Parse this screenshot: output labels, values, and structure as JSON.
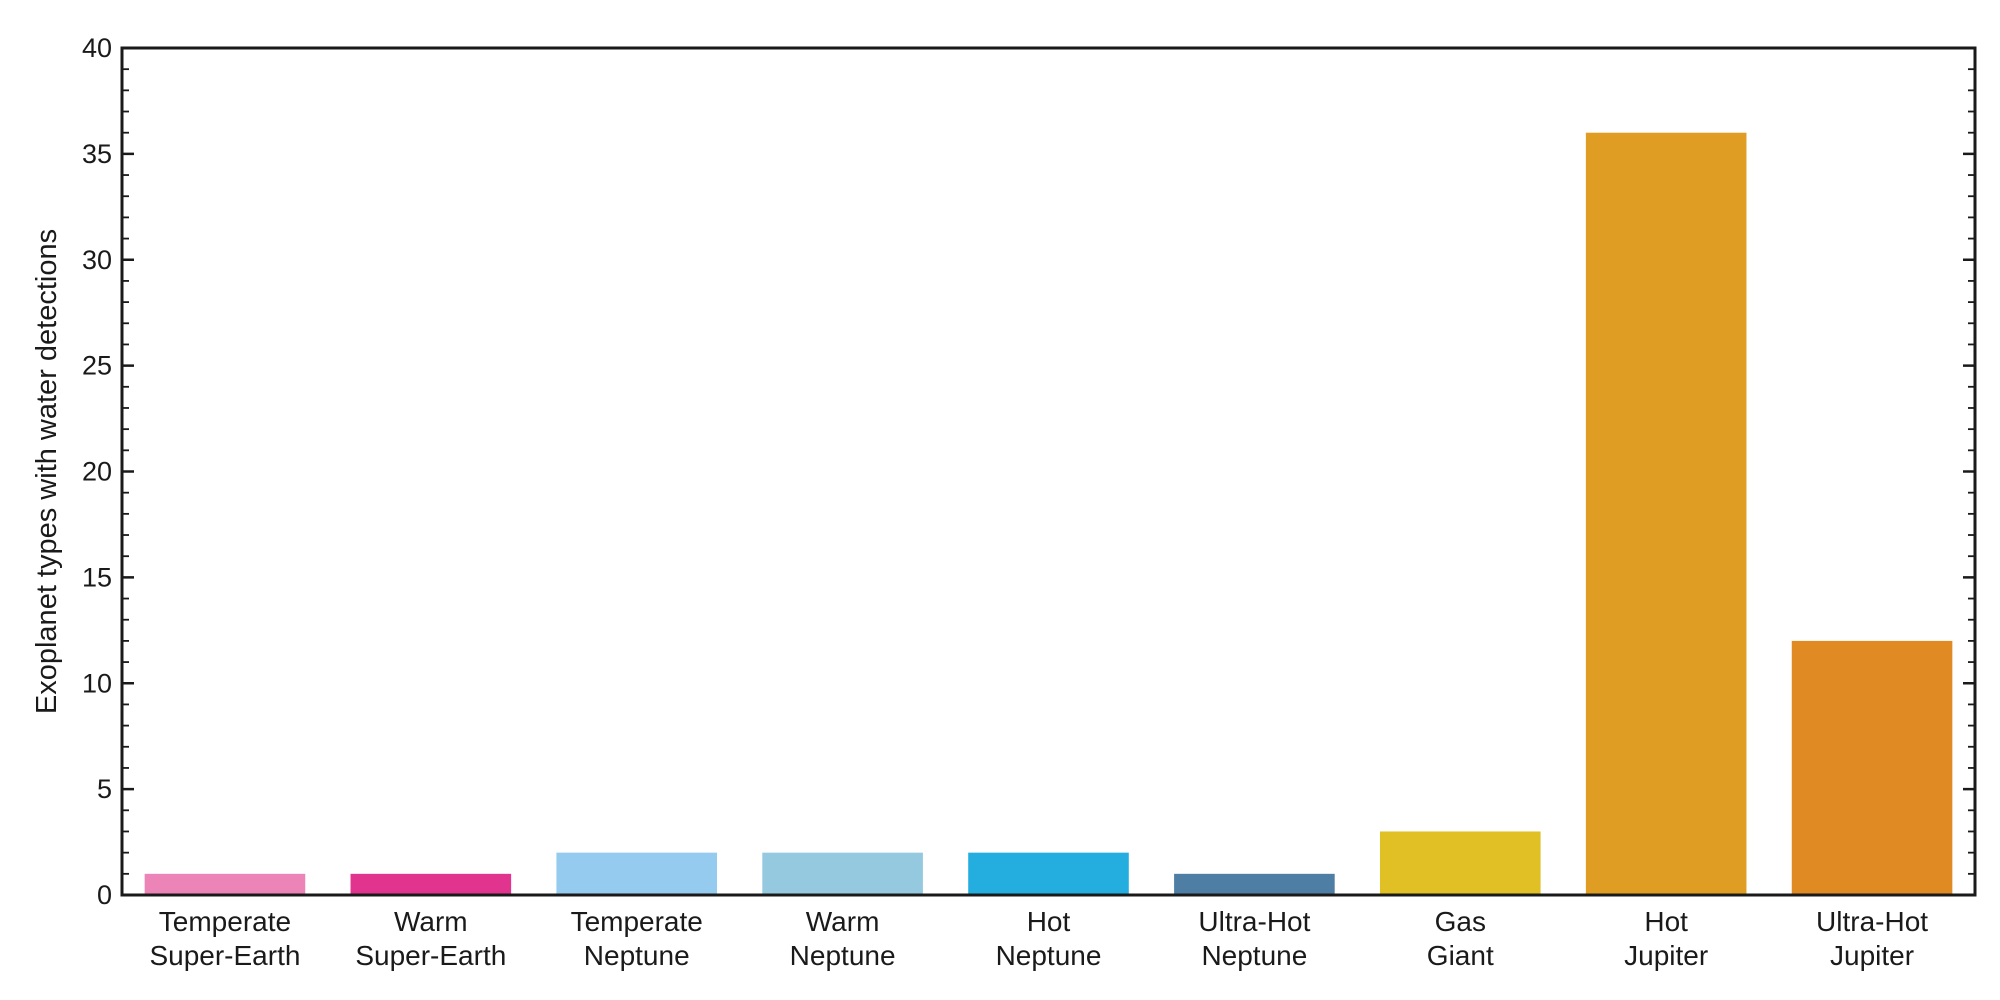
{
  "chart_data": {
    "type": "bar",
    "title": "",
    "xlabel": "",
    "ylabel": "Exoplanet types with water detections",
    "ylim": [
      0,
      40
    ],
    "yticks": [
      0,
      5,
      10,
      15,
      20,
      25,
      30,
      35,
      40
    ],
    "grid": false,
    "categories": [
      [
        "Temperate",
        "Super-Earth"
      ],
      [
        "Warm",
        "Super-Earth"
      ],
      [
        "Temperate",
        "Neptune"
      ],
      [
        "Warm",
        "Neptune"
      ],
      [
        "Hot",
        "Neptune"
      ],
      [
        "Ultra-Hot",
        "Neptune"
      ],
      [
        "Gas",
        "Giant"
      ],
      [
        "Hot",
        "Jupiter"
      ],
      [
        "Ultra-Hot",
        "Jupiter"
      ]
    ],
    "values": [
      1,
      1,
      2,
      2,
      2,
      1,
      3,
      36,
      12
    ],
    "colors": [
      "#ec84b8",
      "#e0348e",
      "#95cbee",
      "#94c9df",
      "#24aee0",
      "#4e7ea3",
      "#e0c024",
      "#e09d23",
      "#e08a23"
    ]
  }
}
